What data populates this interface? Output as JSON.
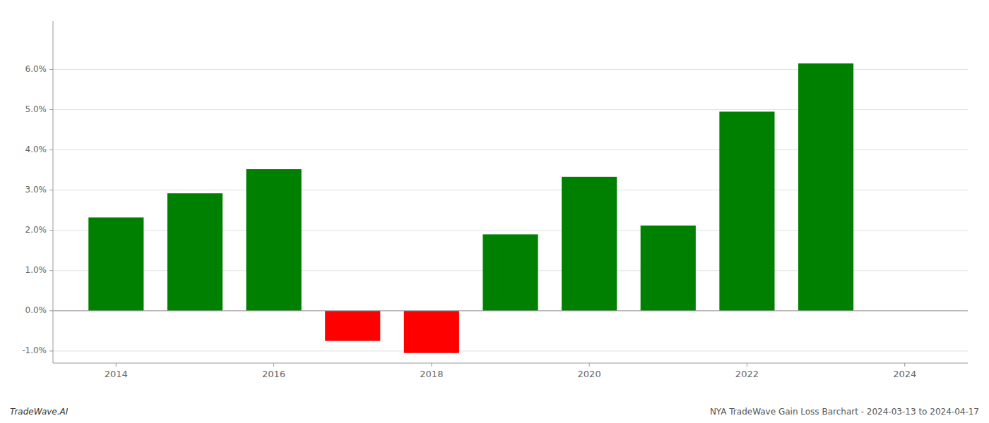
{
  "chart_data": {
    "type": "bar",
    "x": [
      2014,
      2015,
      2016,
      2017,
      2018,
      2019,
      2020,
      2021,
      2022,
      2023
    ],
    "values": [
      0.0232,
      0.0292,
      0.0352,
      -0.0075,
      -0.0105,
      0.019,
      0.0333,
      0.0212,
      0.0495,
      0.0615
    ],
    "colors": [
      "#008000",
      "#008000",
      "#008000",
      "#ff0000",
      "#ff0000",
      "#008000",
      "#008000",
      "#008000",
      "#008000",
      "#008000"
    ],
    "xlim": [
      2013.2,
      2024.8
    ],
    "xticks": [
      2014,
      2016,
      2018,
      2020,
      2022,
      2024
    ],
    "ylim": [
      -0.013,
      0.072
    ],
    "yticks": [
      {
        "value": -0.01,
        "label": "-1.0%"
      },
      {
        "value": 0.0,
        "label": "0.0%"
      },
      {
        "value": 0.01,
        "label": "1.0%"
      },
      {
        "value": 0.02,
        "label": "2.0%"
      },
      {
        "value": 0.03,
        "label": "3.0%"
      },
      {
        "value": 0.04,
        "label": "4.0%"
      },
      {
        "value": 0.05,
        "label": "5.0%"
      },
      {
        "value": 0.06,
        "label": "6.0%"
      }
    ],
    "grid": true,
    "annotations": [
      "TradeWave.AI",
      "NYA TradeWave Gain Loss Barchart - 2024-03-13 to 2024-04-17"
    ]
  }
}
